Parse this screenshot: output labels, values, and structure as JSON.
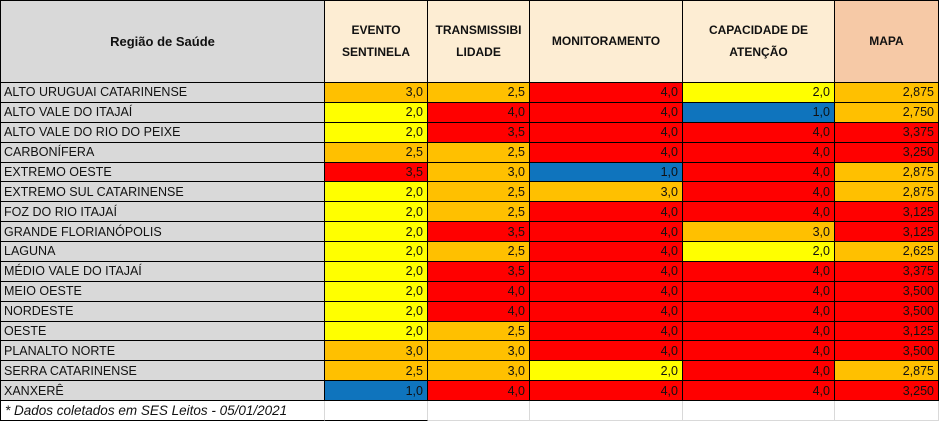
{
  "chart_data": {
    "type": "table",
    "region_column_header": "Região de Saúde",
    "columns": [
      "EVENTO SENTINELA",
      "TRANSMISSIBILIDADE",
      "MONITORAMENTO",
      "CAPACIDADE DE ATENÇÃO",
      "MAPA"
    ],
    "rows": [
      {
        "region": "ALTO URUGUAI CATARINENSE",
        "cells": [
          {
            "value": "3,0",
            "color": "orange"
          },
          {
            "value": "2,5",
            "color": "orange"
          },
          {
            "value": "4,0",
            "color": "red"
          },
          {
            "value": "2,0",
            "color": "yellow"
          },
          {
            "value": "2,875",
            "color": "orange"
          }
        ]
      },
      {
        "region": "ALTO VALE DO ITAJAÍ",
        "cells": [
          {
            "value": "2,0",
            "color": "yellow"
          },
          {
            "value": "4,0",
            "color": "red"
          },
          {
            "value": "4,0",
            "color": "red"
          },
          {
            "value": "1,0",
            "color": "blue"
          },
          {
            "value": "2,750",
            "color": "orange"
          }
        ]
      },
      {
        "region": "ALTO VALE DO RIO DO PEIXE",
        "cells": [
          {
            "value": "2,0",
            "color": "yellow"
          },
          {
            "value": "3,5",
            "color": "red"
          },
          {
            "value": "4,0",
            "color": "red"
          },
          {
            "value": "4,0",
            "color": "red"
          },
          {
            "value": "3,375",
            "color": "red"
          }
        ]
      },
      {
        "region": "CARBONÍFERA",
        "cells": [
          {
            "value": "2,5",
            "color": "orange"
          },
          {
            "value": "2,5",
            "color": "orange"
          },
          {
            "value": "4,0",
            "color": "red"
          },
          {
            "value": "4,0",
            "color": "red"
          },
          {
            "value": "3,250",
            "color": "red"
          }
        ]
      },
      {
        "region": "EXTREMO OESTE",
        "cells": [
          {
            "value": "3,5",
            "color": "red"
          },
          {
            "value": "3,0",
            "color": "orange"
          },
          {
            "value": "1,0",
            "color": "blue"
          },
          {
            "value": "4,0",
            "color": "red"
          },
          {
            "value": "2,875",
            "color": "orange"
          }
        ]
      },
      {
        "region": "EXTREMO SUL CATARINENSE",
        "cells": [
          {
            "value": "2,0",
            "color": "yellow"
          },
          {
            "value": "2,5",
            "color": "orange"
          },
          {
            "value": "3,0",
            "color": "orange"
          },
          {
            "value": "4,0",
            "color": "red"
          },
          {
            "value": "2,875",
            "color": "orange"
          }
        ]
      },
      {
        "region": "FOZ DO RIO ITAJAÍ",
        "cells": [
          {
            "value": "2,0",
            "color": "yellow"
          },
          {
            "value": "2,5",
            "color": "orange"
          },
          {
            "value": "4,0",
            "color": "red"
          },
          {
            "value": "4,0",
            "color": "red"
          },
          {
            "value": "3,125",
            "color": "red"
          }
        ]
      },
      {
        "region": "GRANDE FLORIANÓPOLIS",
        "cells": [
          {
            "value": "2,0",
            "color": "yellow"
          },
          {
            "value": "3,5",
            "color": "red"
          },
          {
            "value": "4,0",
            "color": "red"
          },
          {
            "value": "3,0",
            "color": "orange"
          },
          {
            "value": "3,125",
            "color": "red"
          }
        ]
      },
      {
        "region": "LAGUNA",
        "cells": [
          {
            "value": "2,0",
            "color": "yellow"
          },
          {
            "value": "2,5",
            "color": "orange"
          },
          {
            "value": "4,0",
            "color": "red"
          },
          {
            "value": "2,0",
            "color": "yellow"
          },
          {
            "value": "2,625",
            "color": "orange"
          }
        ]
      },
      {
        "region": "MÉDIO VALE DO ITAJAÍ",
        "cells": [
          {
            "value": "2,0",
            "color": "yellow"
          },
          {
            "value": "3,5",
            "color": "red"
          },
          {
            "value": "4,0",
            "color": "red"
          },
          {
            "value": "4,0",
            "color": "red"
          },
          {
            "value": "3,375",
            "color": "red"
          }
        ]
      },
      {
        "region": "MEIO OESTE",
        "cells": [
          {
            "value": "2,0",
            "color": "yellow"
          },
          {
            "value": "4,0",
            "color": "red"
          },
          {
            "value": "4,0",
            "color": "red"
          },
          {
            "value": "4,0",
            "color": "red"
          },
          {
            "value": "3,500",
            "color": "red"
          }
        ]
      },
      {
        "region": "NORDESTE",
        "cells": [
          {
            "value": "2,0",
            "color": "yellow"
          },
          {
            "value": "4,0",
            "color": "red"
          },
          {
            "value": "4,0",
            "color": "red"
          },
          {
            "value": "4,0",
            "color": "red"
          },
          {
            "value": "3,500",
            "color": "red"
          }
        ]
      },
      {
        "region": "OESTE",
        "cells": [
          {
            "value": "2,0",
            "color": "yellow"
          },
          {
            "value": "2,5",
            "color": "orange"
          },
          {
            "value": "4,0",
            "color": "red"
          },
          {
            "value": "4,0",
            "color": "red"
          },
          {
            "value": "3,125",
            "color": "red"
          }
        ]
      },
      {
        "region": "PLANALTO NORTE",
        "cells": [
          {
            "value": "3,0",
            "color": "orange"
          },
          {
            "value": "3,0",
            "color": "orange"
          },
          {
            "value": "4,0",
            "color": "red"
          },
          {
            "value": "4,0",
            "color": "red"
          },
          {
            "value": "3,500",
            "color": "red"
          }
        ]
      },
      {
        "region": "SERRA CATARINENSE",
        "cells": [
          {
            "value": "2,5",
            "color": "orange"
          },
          {
            "value": "3,0",
            "color": "orange"
          },
          {
            "value": "2,0",
            "color": "yellow"
          },
          {
            "value": "4,0",
            "color": "red"
          },
          {
            "value": "2,875",
            "color": "orange"
          }
        ]
      },
      {
        "region": "XANXERÊ",
        "cells": [
          {
            "value": "1,0",
            "color": "blue"
          },
          {
            "value": "4,0",
            "color": "red"
          },
          {
            "value": "4,0",
            "color": "red"
          },
          {
            "value": "4,0",
            "color": "red"
          },
          {
            "value": "3,250",
            "color": "red"
          }
        ]
      }
    ],
    "footnote": "* Dados coletados em SES Leitos - 05/01/2021"
  },
  "colors": {
    "yellow": "#FFFF00",
    "orange": "#FFC000",
    "red": "#FF0000",
    "blue": "#0F74BD",
    "header_bg": "#FDEDD3",
    "mapa_header_bg": "#F6C9A6",
    "region_bg": "#D9D9D9",
    "border": "#000000",
    "footer_border": "#D9D9D9"
  }
}
